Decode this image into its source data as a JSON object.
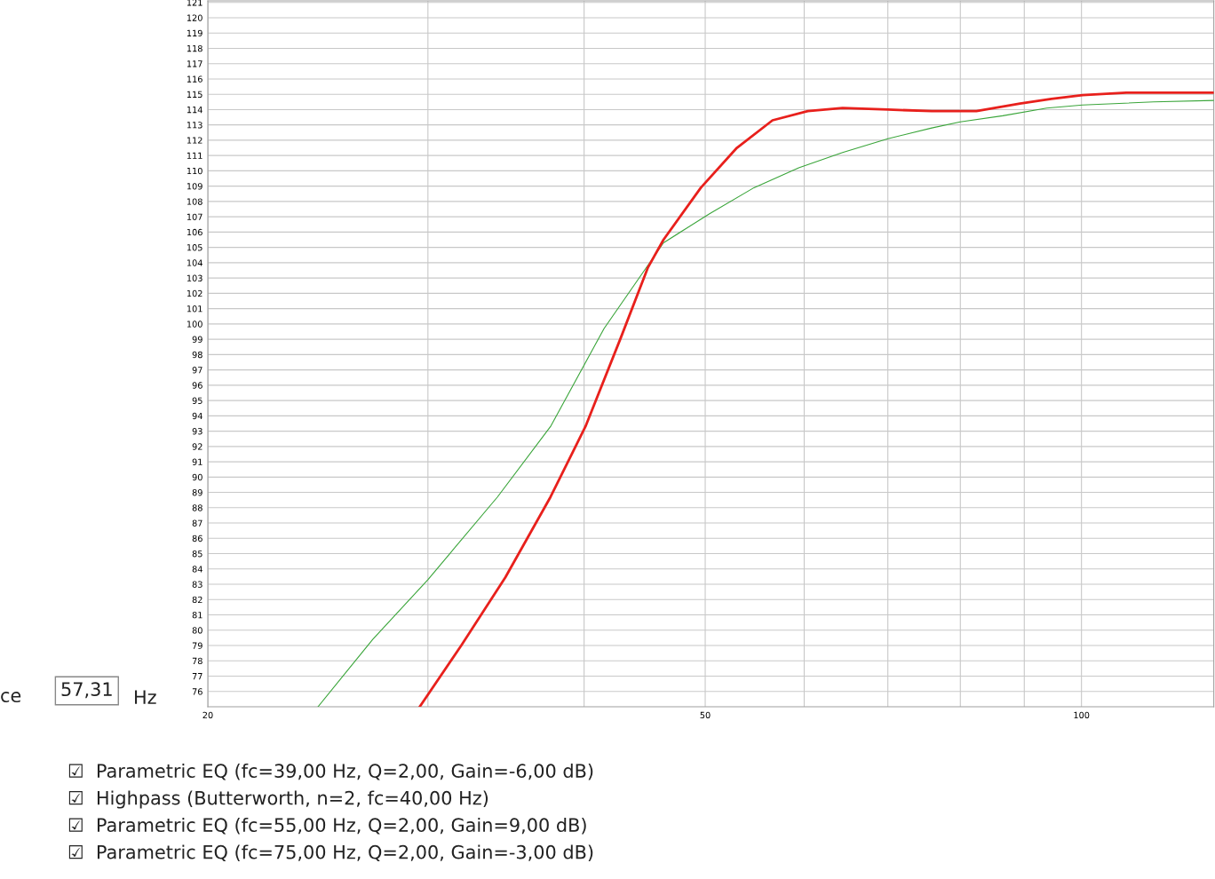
{
  "chart_data": {
    "type": "line",
    "log": "x",
    "xlim": [
      20,
      127.6
    ],
    "xticks": [
      20,
      {
        "value": 30,
        "label": null
      },
      {
        "value": 40,
        "label": null
      },
      50,
      {
        "value": 60,
        "label": null
      },
      {
        "value": 70,
        "label": null
      },
      {
        "value": 80,
        "label": null
      },
      {
        "value": 90,
        "label": null
      },
      100
    ],
    "ylim": [
      75,
      121.1
    ],
    "yticks": [
      76,
      77,
      78,
      79,
      80,
      81,
      82,
      83,
      84,
      85,
      86,
      87,
      88,
      89,
      90,
      91,
      92,
      93,
      94,
      95,
      96,
      97,
      98,
      99,
      100,
      101,
      102,
      103,
      104,
      105,
      106,
      107,
      108,
      109,
      110,
      111,
      112,
      113,
      114,
      115,
      116,
      117,
      118,
      119,
      120,
      121
    ],
    "grid": true,
    "marker": "none",
    "line_style": "solid",
    "series": [
      {
        "color": "#e8201c",
        "x": [
          29.55,
          31.9,
          34.6,
          37.6,
          40.1,
          42.8,
          45.0,
          46.3,
          49.6,
          53.0,
          56.6,
          60.4,
          64.4,
          70.0,
          75.9,
          82.4,
          89.3,
          94.6,
          100.2,
          108.6,
          127.6
        ],
        "values": [
          75,
          79.0,
          83.45,
          88.7,
          93.3,
          99.1,
          103.7,
          105.5,
          108.9,
          111.5,
          113.3,
          113.9,
          114.1,
          114.0,
          113.9,
          113.9,
          114.4,
          114.7,
          114.95,
          115.1,
          115.1
        ]
      },
      {
        "color": "#3aa53a",
        "x": [
          24.5,
          27.1,
          30,
          34.1,
          37.6,
          41.5,
          46.3,
          50.4,
          54.7,
          59.4,
          64.4,
          70.0,
          75.9,
          80,
          86.5,
          93.8,
          100.2,
          114.2,
          127.6
        ],
        "values": [
          75,
          79.4,
          83.3,
          88.7,
          93.3,
          99.7,
          105.3,
          107.2,
          108.9,
          110.2,
          111.2,
          112.1,
          112.8,
          113.2,
          113.6,
          114.1,
          114.3,
          114.5,
          114.6
        ]
      }
    ],
    "annotations": [
      "ce",
      "57,31",
      "Hz",
      "☑  Parametric EQ (fc=39,00 Hz, Q=2,00, Gain=-6,00 dB)",
      "☑  Highpass (Butterworth, n=2, fc=40,00 Hz)",
      "☑  Parametric EQ (fc=55,00 Hz, Q=2,00, Gain=9,00 dB)",
      "☑  Parametric EQ (fc=75,00 Hz, Q=2,00, Gain=-3,00 dB)"
    ]
  }
}
